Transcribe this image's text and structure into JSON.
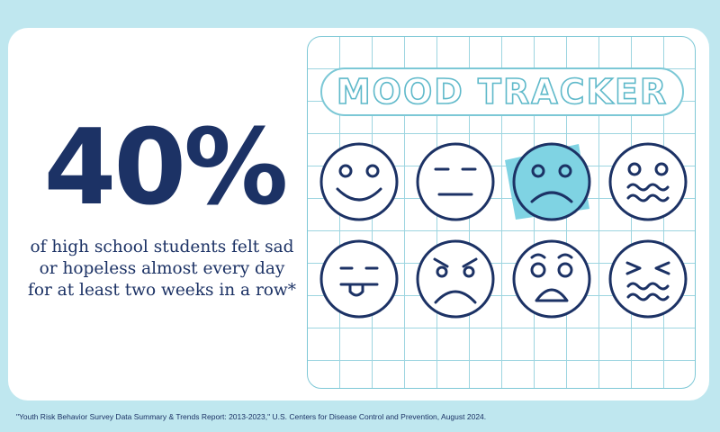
{
  "stat": {
    "number": "40%",
    "caption": "of high school students felt sad or hopeless almost every day for at least two weeks in a row*"
  },
  "tracker": {
    "title": "MOOD TRACKER",
    "faces": [
      "happy",
      "neutral",
      "sad",
      "nervous",
      "silly",
      "angry",
      "shocked",
      "distressed"
    ],
    "highlighted": "sad",
    "highlight_color": "#7fd3e3",
    "line_color": "#1c3265"
  },
  "footnote": "\"Youth Risk Behavior Survey Data Summary & Trends Report: 2013-2023,\" U.S. Centers for Disease Control and Prevention, August 2024."
}
